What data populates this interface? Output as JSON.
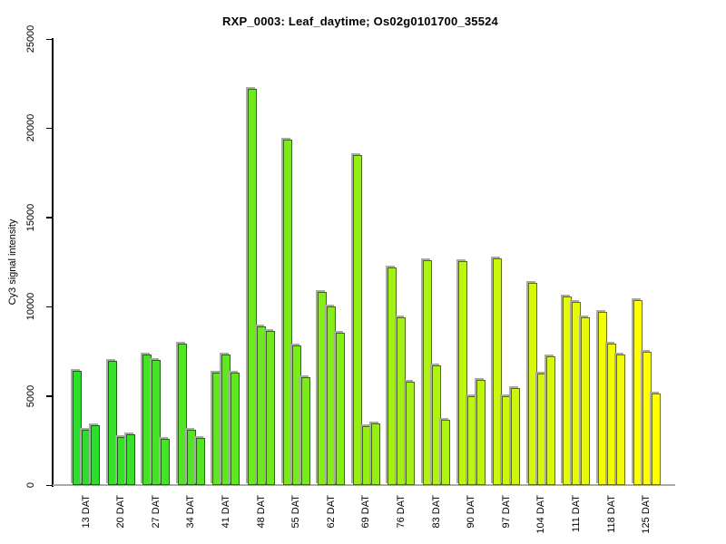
{
  "chart_data": {
    "type": "bar",
    "title": "RXP_0003: Leaf_daytime; Os02g0101700_35524",
    "xlabel": "",
    "ylabel": "Cy3 signal intensity",
    "ylim": [
      0,
      25000
    ],
    "yticks": [
      0,
      5000,
      10000,
      15000,
      20000,
      25000
    ],
    "grid": "off",
    "legend": "none",
    "bars_per_group": 3,
    "colors": {
      "background": "#ffffff",
      "axis": "#000000",
      "baseline": "#aaaaaa",
      "bar_shadow": "#a9a9a9",
      "palette_start": "#2ADF2A",
      "palette_end": "#FFFF00"
    },
    "groups": [
      {
        "label": "13 DAT",
        "color": "#2ADF2A",
        "values": [
          6400,
          3100,
          3350
        ]
      },
      {
        "label": "20 DAT",
        "color": "#37E127",
        "values": [
          6950,
          2700,
          2850
        ]
      },
      {
        "label": "27 DAT",
        "color": "#45E325",
        "values": [
          7300,
          7000,
          2600
        ]
      },
      {
        "label": "34 DAT",
        "color": "#52E522",
        "values": [
          7950,
          3100,
          2650
        ]
      },
      {
        "label": "41 DAT",
        "color": "#5FE720",
        "values": [
          6300,
          7300,
          6300
        ]
      },
      {
        "label": "48 DAT",
        "color": "#6DE91D",
        "values": [
          22200,
          8900,
          8650
        ]
      },
      {
        "label": "55 DAT",
        "color": "#7AEB1A",
        "values": [
          19350,
          7850,
          6050
        ]
      },
      {
        "label": "62 DAT",
        "color": "#87ED18",
        "values": [
          10800,
          10000,
          8550
        ]
      },
      {
        "label": "69 DAT",
        "color": "#95EF15",
        "values": [
          18500,
          3300,
          3450
        ]
      },
      {
        "label": "76 DAT",
        "color": "#A2F112",
        "values": [
          12200,
          9400,
          5800
        ]
      },
      {
        "label": "83 DAT",
        "color": "#AFF310",
        "values": [
          12600,
          6700,
          3650
        ]
      },
      {
        "label": "90 DAT",
        "color": "#BCF50D",
        "values": [
          12550,
          5000,
          5900
        ]
      },
      {
        "label": "97 DAT",
        "color": "#CAF70B",
        "values": [
          12700,
          5000,
          5450
        ]
      },
      {
        "label": "104 DAT",
        "color": "#D7F908",
        "values": [
          11350,
          6250,
          7200
        ]
      },
      {
        "label": "111 DAT",
        "color": "#E4FB05",
        "values": [
          10550,
          10250,
          9400
        ]
      },
      {
        "label": "118 DAT",
        "color": "#F2FD03",
        "values": [
          9700,
          7950,
          7300
        ]
      },
      {
        "label": "125 DAT",
        "color": "#FFFF00",
        "values": [
          10350,
          7450,
          5150
        ]
      }
    ]
  }
}
